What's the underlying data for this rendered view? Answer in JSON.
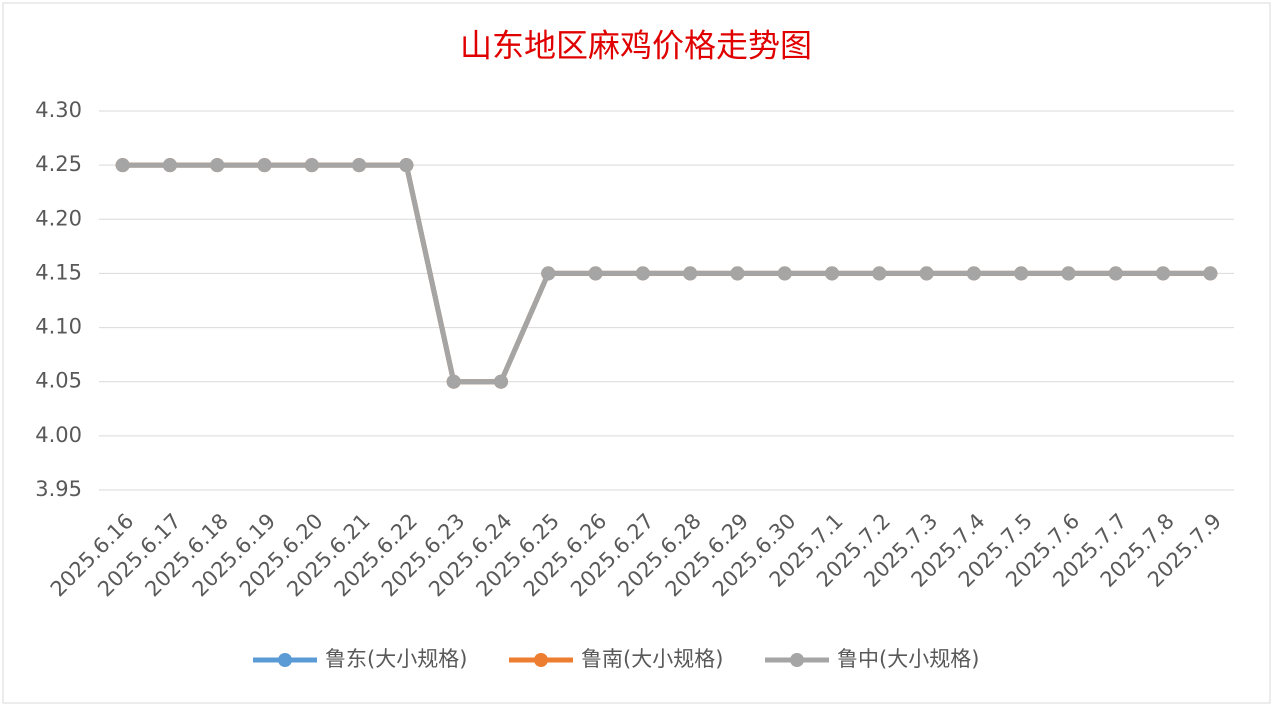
{
  "chart_data": {
    "type": "line",
    "title": "山东地区麻鸡价格走势图",
    "categories": [
      "2025.6.16",
      "2025.6.17",
      "2025.6.18",
      "2025.6.19",
      "2025.6.20",
      "2025.6.21",
      "2025.6.22",
      "2025.6.23",
      "2025.6.24",
      "2025.6.25",
      "2025.6.26",
      "2025.6.27",
      "2025.6.28",
      "2025.6.29",
      "2025.6.30",
      "2025.7.1",
      "2025.7.2",
      "2025.7.3",
      "2025.7.4",
      "2025.7.5",
      "2025.7.6",
      "2025.7.7",
      "2025.7.8",
      "2025.7.9"
    ],
    "series": [
      {
        "name": "鲁东(大小规格)",
        "color": "#5b9bd5",
        "values": [
          4.25,
          4.25,
          4.25,
          4.25,
          4.25,
          4.25,
          4.25,
          4.05,
          4.05,
          4.15,
          4.15,
          4.15,
          4.15,
          4.15,
          4.15,
          4.15,
          4.15,
          4.15,
          4.15,
          4.15,
          4.15,
          4.15,
          4.15,
          4.15
        ]
      },
      {
        "name": "鲁南(大小规格)",
        "color": "#ed7d31",
        "values": [
          4.25,
          4.25,
          4.25,
          4.25,
          4.25,
          4.25,
          4.25,
          4.05,
          4.05,
          4.15,
          4.15,
          4.15,
          4.15,
          4.15,
          4.15,
          4.15,
          4.15,
          4.15,
          4.15,
          4.15,
          4.15,
          4.15,
          4.15,
          4.15
        ]
      },
      {
        "name": "鲁中(大小规格)",
        "color": "#a5a5a5",
        "values": [
          4.25,
          4.25,
          4.25,
          4.25,
          4.25,
          4.25,
          4.25,
          4.05,
          4.05,
          4.15,
          4.15,
          4.15,
          4.15,
          4.15,
          4.15,
          4.15,
          4.15,
          4.15,
          4.15,
          4.15,
          4.15,
          4.15,
          4.15,
          4.15
        ]
      }
    ],
    "ylim": [
      3.95,
      4.3
    ],
    "yticks": [
      {
        "value": 3.95,
        "label": "3.95"
      },
      {
        "value": 4.0,
        "label": "4.00"
      },
      {
        "value": 4.05,
        "label": "4.05"
      },
      {
        "value": 4.1,
        "label": "4.10"
      },
      {
        "value": 4.15,
        "label": "4.15"
      },
      {
        "value": 4.2,
        "label": "4.20"
      },
      {
        "value": 4.25,
        "label": "4.25"
      },
      {
        "value": 4.3,
        "label": "4.30"
      }
    ],
    "grid": true,
    "legend": "bottom"
  }
}
